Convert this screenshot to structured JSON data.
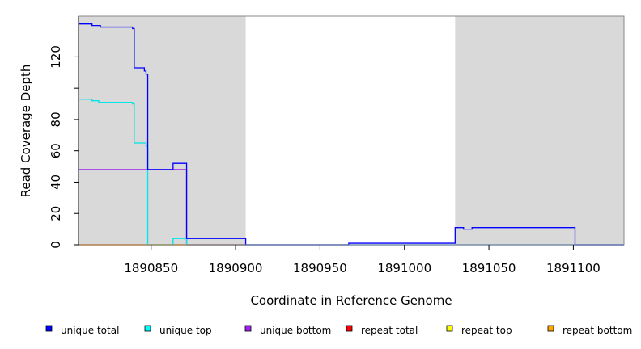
{
  "chart_data": {
    "type": "line",
    "xlabel": "Coordinate in Reference Genome",
    "ylabel": "Read Coverage Depth",
    "xlim": [
      1890807,
      1891130
    ],
    "ylim": [
      0,
      146
    ],
    "x_ticks": [
      1890850,
      1890900,
      1890950,
      1891000,
      1891050,
      1891100
    ],
    "x_tick_labels": [
      "1890850",
      "1890900",
      "1890950",
      "1891000",
      "1891050",
      "1891100"
    ],
    "y_ticks": [
      0,
      20,
      40,
      60,
      80,
      100,
      120
    ],
    "y_tick_labels": [
      "0",
      "20",
      "40",
      "60",
      "80",
      "",
      "120"
    ],
    "grid": false,
    "legend_position": "bottom",
    "shaded_regions": [
      {
        "x": [
          1890807,
          1890906
        ],
        "color": "#d9d9d9"
      },
      {
        "x": [
          1891030,
          1891130
        ],
        "color": "#d9d9d9"
      }
    ],
    "series": [
      {
        "name": "unique total",
        "color": "#0000ff",
        "x": [
          1890807,
          1890815,
          1890815,
          1890820,
          1890820,
          1890839,
          1890839,
          1890840,
          1890840,
          1890846,
          1890846,
          1890847,
          1890847,
          1890848,
          1890848,
          1890863,
          1890863,
          1890871,
          1890871,
          1890906,
          1890906,
          1890967,
          1890967,
          1891030,
          1891030,
          1891035,
          1891035,
          1891040,
          1891040,
          1891101,
          1891101,
          1891130
        ],
        "y": [
          141,
          141,
          140,
          140,
          139,
          139,
          138,
          138,
          113,
          113,
          111,
          111,
          109,
          109,
          48,
          48,
          52,
          52,
          4,
          4,
          0,
          0,
          1,
          1,
          11,
          11,
          10,
          10,
          11,
          11,
          0,
          0
        ]
      },
      {
        "name": "unique top",
        "color": "#00e5e5",
        "x": [
          1890807,
          1890815,
          1890815,
          1890819,
          1890819,
          1890839,
          1890839,
          1890840,
          1890840,
          1890847,
          1890847,
          1890848,
          1890848,
          1890863,
          1890863,
          1890871,
          1890871,
          1890906,
          1890906,
          1891130
        ],
        "y": [
          93,
          93,
          92,
          92,
          91,
          91,
          90,
          90,
          65,
          65,
          63,
          63,
          0,
          0,
          4,
          4,
          0,
          0,
          0,
          0
        ]
      },
      {
        "name": "unique bottom",
        "color": "#a020f0",
        "x": [
          1890807,
          1890871,
          1890871,
          1891130
        ],
        "y": [
          48,
          48,
          0,
          0
        ]
      },
      {
        "name": "repeat total",
        "color": "#ff0000",
        "x": [
          1890807,
          1890906
        ],
        "y": [
          0,
          0
        ]
      },
      {
        "name": "repeat top",
        "color": "#ffff00",
        "x": [
          1890807,
          1890906
        ],
        "y": [
          0,
          0
        ]
      },
      {
        "name": "repeat bottom",
        "color": "#ffa500",
        "x": [
          1890807,
          1890906
        ],
        "y": [
          0,
          0
        ]
      }
    ],
    "legend": [
      {
        "label": "unique total",
        "color": "#0000ff"
      },
      {
        "label": "unique top",
        "color": "#00ffff"
      },
      {
        "label": "unique bottom",
        "color": "#a020f0"
      },
      {
        "label": "repeat total",
        "color": "#ff0000"
      },
      {
        "label": "repeat top",
        "color": "#ffff00"
      },
      {
        "label": "repeat bottom",
        "color": "#ffa500"
      }
    ]
  }
}
